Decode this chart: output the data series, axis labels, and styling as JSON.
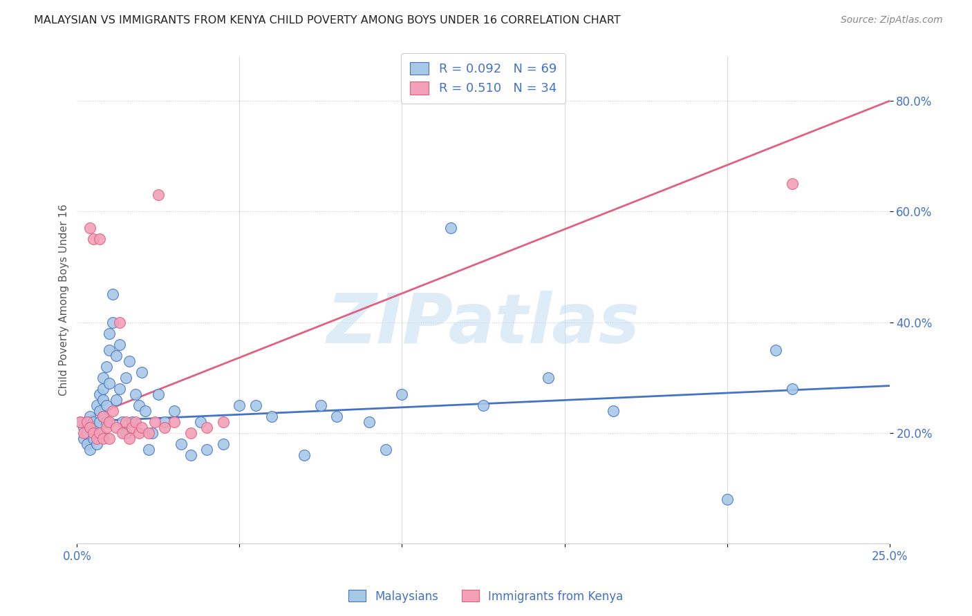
{
  "title": "MALAYSIAN VS IMMIGRANTS FROM KENYA CHILD POVERTY AMONG BOYS UNDER 16 CORRELATION CHART",
  "source": "Source: ZipAtlas.com",
  "ylabel": "Child Poverty Among Boys Under 16",
  "xlim": [
    0.0,
    0.25
  ],
  "ylim": [
    0.0,
    0.88
  ],
  "yticks": [
    0.2,
    0.4,
    0.6,
    0.8
  ],
  "ytick_labels": [
    "20.0%",
    "40.0%",
    "60.0%",
    "80.0%"
  ],
  "xticks": [
    0.0,
    0.05,
    0.1,
    0.15,
    0.2,
    0.25
  ],
  "watermark": "ZIPatlas",
  "legend_R1": "R = 0.092",
  "legend_N1": "N = 69",
  "legend_R2": "R = 0.510",
  "legend_N2": "N = 34",
  "color_blue": "#A8C8E8",
  "color_pink": "#F4A0B8",
  "line_blue": "#4472C4",
  "line_pink": "#E06080",
  "color_blue_text": "#4472C4",
  "malaysians_x": [
    0.001,
    0.002,
    0.002,
    0.003,
    0.003,
    0.004,
    0.004,
    0.004,
    0.005,
    0.005,
    0.005,
    0.006,
    0.006,
    0.006,
    0.007,
    0.007,
    0.007,
    0.007,
    0.008,
    0.008,
    0.008,
    0.008,
    0.009,
    0.009,
    0.009,
    0.01,
    0.01,
    0.01,
    0.011,
    0.011,
    0.012,
    0.012,
    0.013,
    0.013,
    0.014,
    0.015,
    0.015,
    0.016,
    0.017,
    0.018,
    0.019,
    0.02,
    0.021,
    0.022,
    0.023,
    0.025,
    0.027,
    0.03,
    0.032,
    0.035,
    0.038,
    0.04,
    0.045,
    0.05,
    0.055,
    0.06,
    0.07,
    0.075,
    0.08,
    0.09,
    0.095,
    0.1,
    0.115,
    0.125,
    0.145,
    0.165,
    0.2,
    0.215,
    0.22
  ],
  "malaysians_y": [
    0.22,
    0.19,
    0.21,
    0.2,
    0.18,
    0.21,
    0.17,
    0.23,
    0.2,
    0.22,
    0.19,
    0.25,
    0.21,
    0.18,
    0.24,
    0.22,
    0.2,
    0.27,
    0.26,
    0.3,
    0.28,
    0.23,
    0.32,
    0.22,
    0.25,
    0.35,
    0.38,
    0.29,
    0.4,
    0.45,
    0.34,
    0.26,
    0.36,
    0.28,
    0.22,
    0.3,
    0.2,
    0.33,
    0.22,
    0.27,
    0.25,
    0.31,
    0.24,
    0.17,
    0.2,
    0.27,
    0.22,
    0.24,
    0.18,
    0.16,
    0.22,
    0.17,
    0.18,
    0.25,
    0.25,
    0.23,
    0.16,
    0.25,
    0.23,
    0.22,
    0.17,
    0.27,
    0.57,
    0.25,
    0.3,
    0.24,
    0.08,
    0.35,
    0.28
  ],
  "kenya_x": [
    0.001,
    0.002,
    0.003,
    0.004,
    0.004,
    0.005,
    0.005,
    0.006,
    0.007,
    0.007,
    0.008,
    0.008,
    0.009,
    0.01,
    0.01,
    0.011,
    0.012,
    0.013,
    0.014,
    0.015,
    0.016,
    0.017,
    0.018,
    0.019,
    0.02,
    0.022,
    0.024,
    0.025,
    0.027,
    0.03,
    0.035,
    0.04,
    0.045,
    0.22
  ],
  "kenya_y": [
    0.22,
    0.2,
    0.22,
    0.57,
    0.21,
    0.55,
    0.2,
    0.19,
    0.55,
    0.2,
    0.23,
    0.19,
    0.21,
    0.22,
    0.19,
    0.24,
    0.21,
    0.4,
    0.2,
    0.22,
    0.19,
    0.21,
    0.22,
    0.2,
    0.21,
    0.2,
    0.22,
    0.63,
    0.21,
    0.22,
    0.2,
    0.21,
    0.22,
    0.65
  ]
}
